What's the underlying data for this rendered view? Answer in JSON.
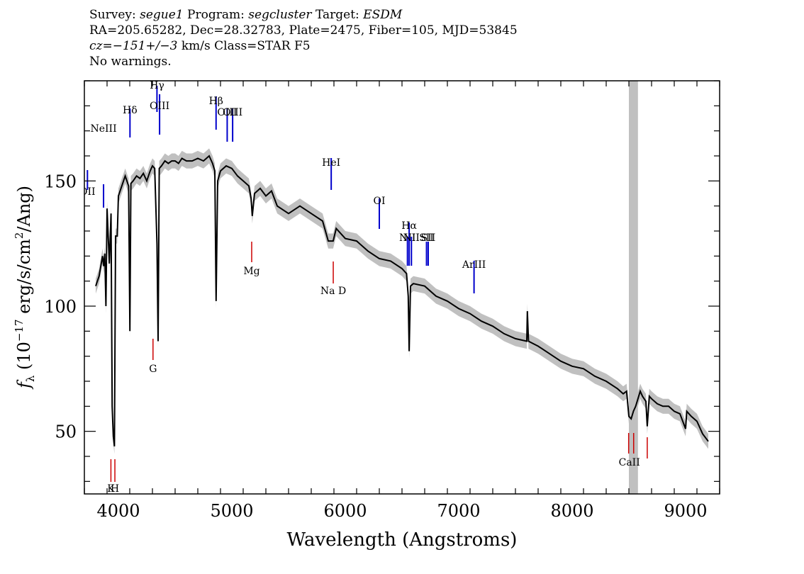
{
  "header": {
    "line1": {
      "survey_label": "Survey:",
      "survey": "segue1",
      "program_label": "Program:",
      "program": "segcluster",
      "target_label": "Target:",
      "target": "ESDM"
    },
    "line2": "RA=205.65282, Dec=28.32783, Plate=2475, Fiber=105, MJD=53845",
    "line3": {
      "cz": "cz=−151+/−3",
      "rest": " km/s Class=STAR F5"
    },
    "line4": "No warnings."
  },
  "chart_data": {
    "type": "line",
    "xlabel": "Wavelength (Angstroms)",
    "ylabel": "fλ (10⁻¹⁷ erg/s/cm²/Ang)",
    "xlim": [
      3700,
      9300
    ],
    "ylim": [
      25,
      190
    ],
    "xticks": [
      4000,
      5000,
      6000,
      7000,
      8000,
      9000
    ],
    "yticks": [
      50,
      100,
      150
    ],
    "grid": false,
    "colors": {
      "spectrum": "#000000",
      "error_band": "#c0c0c0",
      "emission": "#0000cc",
      "absorption": "#cc0000",
      "mask": "#c0c0c0"
    },
    "masked_region": [
      8500,
      8580
    ],
    "series": [
      {
        "x": [
          3800,
          3830,
          3860,
          3870,
          3880,
          3890,
          3900,
          3920,
          3935,
          3945,
          3955,
          3965,
          3975,
          3990,
          4000,
          4030,
          4060,
          4090,
          4101,
          4110,
          4130,
          4160,
          4190,
          4220,
          4250,
          4280,
          4300,
          4320,
          4340,
          4350,
          4360,
          4380,
          4410,
          4440,
          4470,
          4500,
          4530,
          4560,
          4600,
          4650,
          4700,
          4750,
          4800,
          4830,
          4850,
          4861,
          4875,
          4900,
          4950,
          5000,
          5050,
          5100,
          5150,
          5170,
          5180,
          5200,
          5250,
          5300,
          5350,
          5400,
          5500,
          5600,
          5700,
          5800,
          5850,
          5893,
          5920,
          6000,
          6100,
          6200,
          6300,
          6400,
          6500,
          6540,
          6555,
          6563,
          6575,
          6600,
          6700,
          6800,
          6900,
          7000,
          7100,
          7200,
          7300,
          7400,
          7500,
          7600,
          7605,
          7615,
          7700,
          7800,
          7900,
          8000,
          8100,
          8200,
          8300,
          8400,
          8450,
          8480,
          8500,
          8520,
          8540,
          8560,
          8580,
          8600,
          8620,
          8650,
          8662,
          8680,
          8700,
          8750,
          8800,
          8850,
          8900,
          8950,
          9000,
          9010,
          9050,
          9100,
          9150,
          9200
        ],
        "y": [
          108,
          112,
          120,
          116,
          121,
          100,
          139,
          117,
          137,
          60,
          48,
          44,
          128,
          128,
          144,
          148,
          152,
          148,
          90,
          149,
          150,
          152,
          151,
          153,
          150,
          154,
          156,
          155,
          125,
          86,
          155,
          156,
          158,
          157,
          158,
          158,
          157,
          159,
          158,
          158,
          159,
          158,
          160,
          157,
          154,
          102,
          150,
          154,
          156,
          155,
          152,
          150,
          148,
          143,
          136,
          145,
          147,
          144,
          146,
          140,
          137,
          140,
          137,
          134,
          126,
          126,
          131,
          127,
          126,
          122,
          119,
          118,
          115,
          113,
          104,
          82,
          108,
          109,
          108,
          104,
          102,
          99,
          97,
          94,
          92,
          89,
          87,
          86,
          98,
          86,
          84,
          81,
          78,
          76,
          75,
          72,
          70,
          67,
          65,
          66,
          56,
          55,
          58,
          60,
          63,
          66,
          64,
          62,
          52,
          64,
          63,
          61,
          60,
          60,
          58,
          57,
          51,
          58,
          56,
          54,
          49,
          46
        ],
        "err": 3
      }
    ],
    "lines": {
      "emission": [
        {
          "label": "OII",
          "x": 3727
        },
        {
          "label": "NeIII",
          "x": 3869
        },
        {
          "label": "Hδ",
          "x": 4102
        },
        {
          "label": "Hγ",
          "x": 4340
        },
        {
          "label": "OIII",
          "x": 4363
        },
        {
          "label": "Hβ",
          "x": 4861
        },
        {
          "label": "OIII",
          "x": 4959
        },
        {
          "label": "OIII",
          "x": 5007
        },
        {
          "label": "HeI",
          "x": 5876
        },
        {
          "label": "OI",
          "x": 6300
        },
        {
          "label": "NII",
          "x": 6548
        },
        {
          "label": "Hα",
          "x": 6563
        },
        {
          "label": "NII",
          "x": 6583
        },
        {
          "label": "SII",
          "x": 6716
        },
        {
          "label": "SII",
          "x": 6731
        },
        {
          "label": "ArIII",
          "x": 7135
        }
      ],
      "absorption": [
        {
          "label": "K",
          "x": 3934
        },
        {
          "label": "H",
          "x": 3969
        },
        {
          "label": "G",
          "x": 4305
        },
        {
          "label": "Mg",
          "x": 5175
        },
        {
          "label": "Na D",
          "x": 5894
        },
        {
          "label": "CaII",
          "x": 8498
        },
        {
          "label": "CaII",
          "x": 8542
        },
        {
          "label": "CaII",
          "x": 8662
        }
      ]
    }
  }
}
